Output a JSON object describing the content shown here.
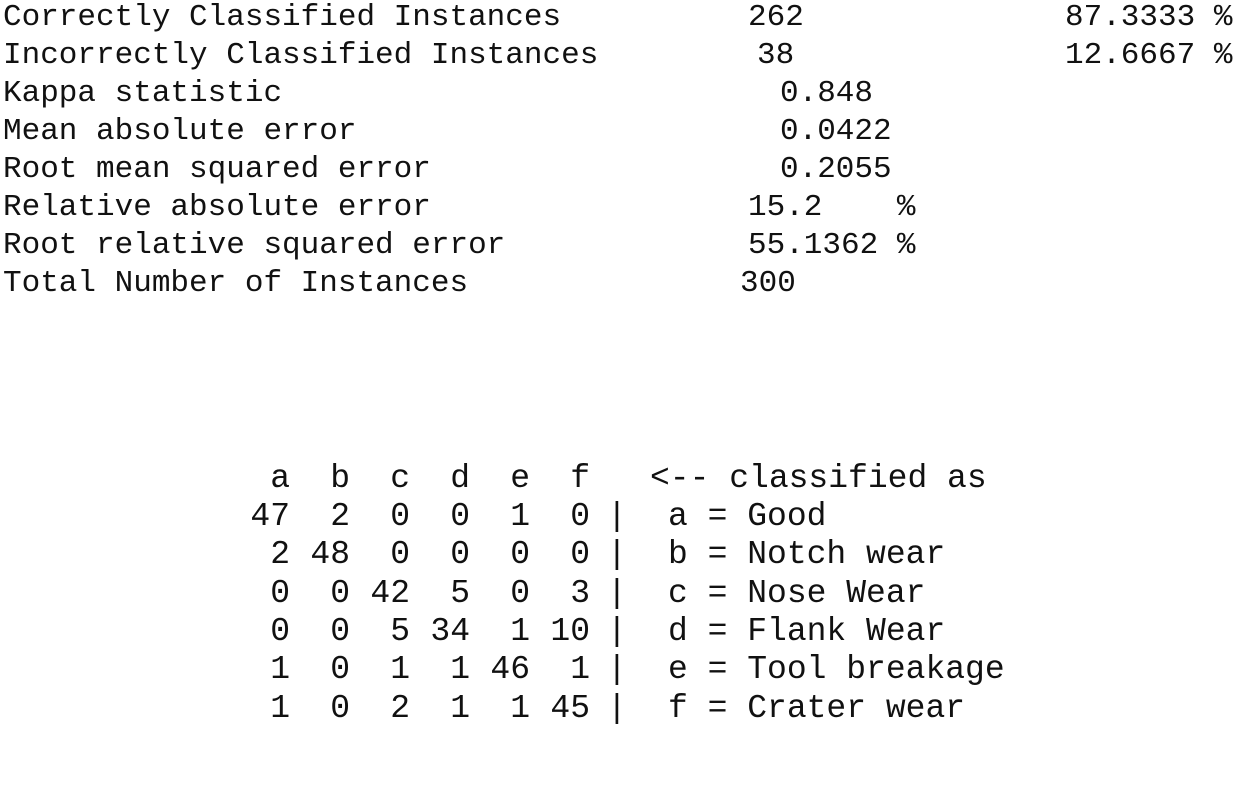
{
  "summary": [
    {
      "label": "Correctly Classified Instances",
      "value": "262",
      "percent": "87.3333 %"
    },
    {
      "label": "Incorrectly Classified Instances",
      "value": "38",
      "percent": "12.6667 %"
    },
    {
      "label": "Kappa statistic",
      "value": "0.848",
      "percent": ""
    },
    {
      "label": "Mean absolute error",
      "value": "0.0422",
      "percent": ""
    },
    {
      "label": "Root mean squared error",
      "value": "0.2055",
      "percent": ""
    },
    {
      "label": "Relative absolute error",
      "value": "15.2    %",
      "percent": ""
    },
    {
      "label": "Root relative squared error",
      "value": "55.1362 %",
      "percent": ""
    },
    {
      "label": "Total Number of Instances",
      "value": "300",
      "percent": ""
    }
  ],
  "confusion_matrix": {
    "headers": [
      "a",
      "b",
      "c",
      "d",
      "e",
      "f"
    ],
    "header_caption": "<-- classified as",
    "separator": "|",
    "rows": [
      {
        "values": [
          "47",
          "2",
          "0",
          "0",
          "1",
          "0"
        ],
        "label": "a = Good"
      },
      {
        "values": [
          "2",
          "48",
          "0",
          "0",
          "0",
          "0"
        ],
        "label": "b = Notch wear"
      },
      {
        "values": [
          "0",
          "0",
          "42",
          "5",
          "0",
          "3"
        ],
        "label": "c = Nose Wear"
      },
      {
        "values": [
          "0",
          "0",
          "5",
          "34",
          "1",
          "10"
        ],
        "label": "d = Flank Wear"
      },
      {
        "values": [
          "1",
          "0",
          "1",
          "1",
          "46",
          "1"
        ],
        "label": "e = Tool breakage"
      },
      {
        "values": [
          "1",
          "0",
          "2",
          "1",
          "1",
          "45"
        ],
        "label": "f = Crater wear"
      }
    ]
  }
}
